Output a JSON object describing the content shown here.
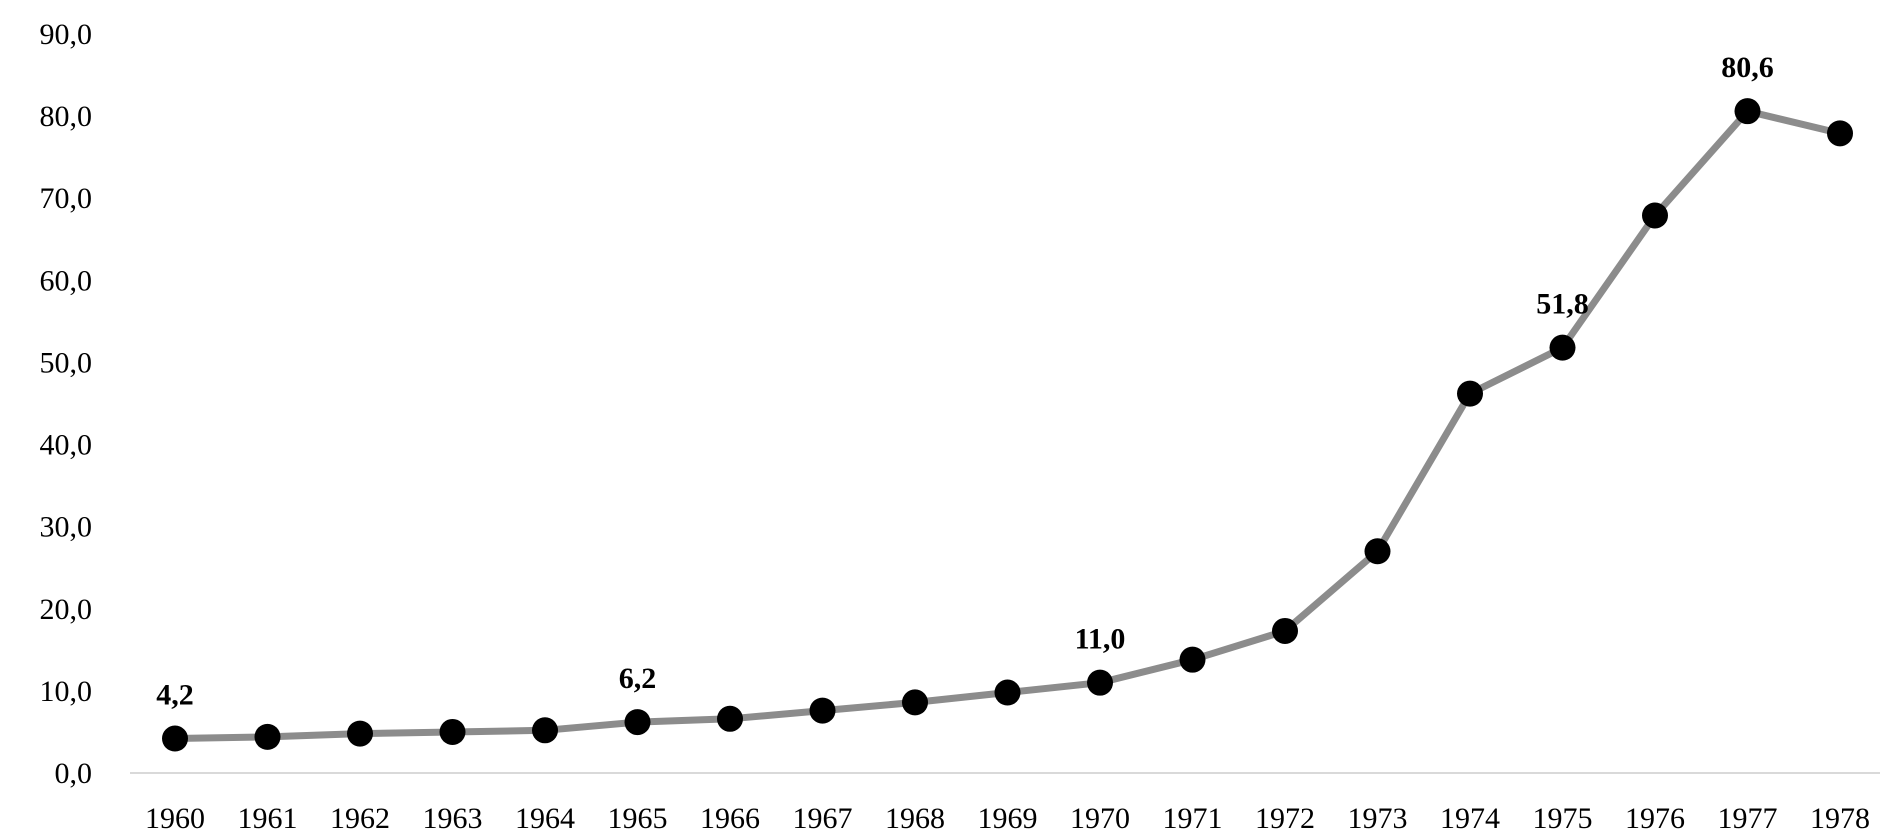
{
  "colors": {
    "line": "#8c8c8c",
    "marker": "#000000",
    "axis": "#d9d9d9",
    "text": "#000000"
  },
  "chart_data": {
    "type": "line",
    "title": "",
    "xlabel": "",
    "ylabel": "",
    "categories": [
      "1960",
      "1961",
      "1962",
      "1963",
      "1964",
      "1965",
      "1966",
      "1967",
      "1968",
      "1969",
      "1970",
      "1971",
      "1972",
      "1973",
      "1974",
      "1975",
      "1976",
      "1977",
      "1978"
    ],
    "series": [
      {
        "values": [
          4.2,
          4.4,
          4.8,
          5.0,
          5.2,
          6.2,
          6.6,
          7.6,
          8.6,
          9.8,
          11.0,
          13.8,
          17.3,
          27.0,
          46.2,
          51.8,
          67.9,
          80.6,
          77.9
        ]
      }
    ],
    "data_labels": [
      {
        "index": 0,
        "text": "4,2"
      },
      {
        "index": 5,
        "text": "6,2"
      },
      {
        "index": 10,
        "text": "11,0"
      },
      {
        "index": 15,
        "text": "51,8"
      },
      {
        "index": 17,
        "text": "80,6"
      }
    ],
    "ylim": [
      0,
      90
    ],
    "yticks": [
      0,
      10,
      20,
      30,
      40,
      50,
      60,
      70,
      80,
      90
    ],
    "ytick_labels": [
      "0,0",
      "10,0",
      "20,0",
      "30,0",
      "40,0",
      "50,0",
      "60,0",
      "70,0",
      "80,0",
      "90,0"
    ],
    "grid": false,
    "legend": "none"
  }
}
